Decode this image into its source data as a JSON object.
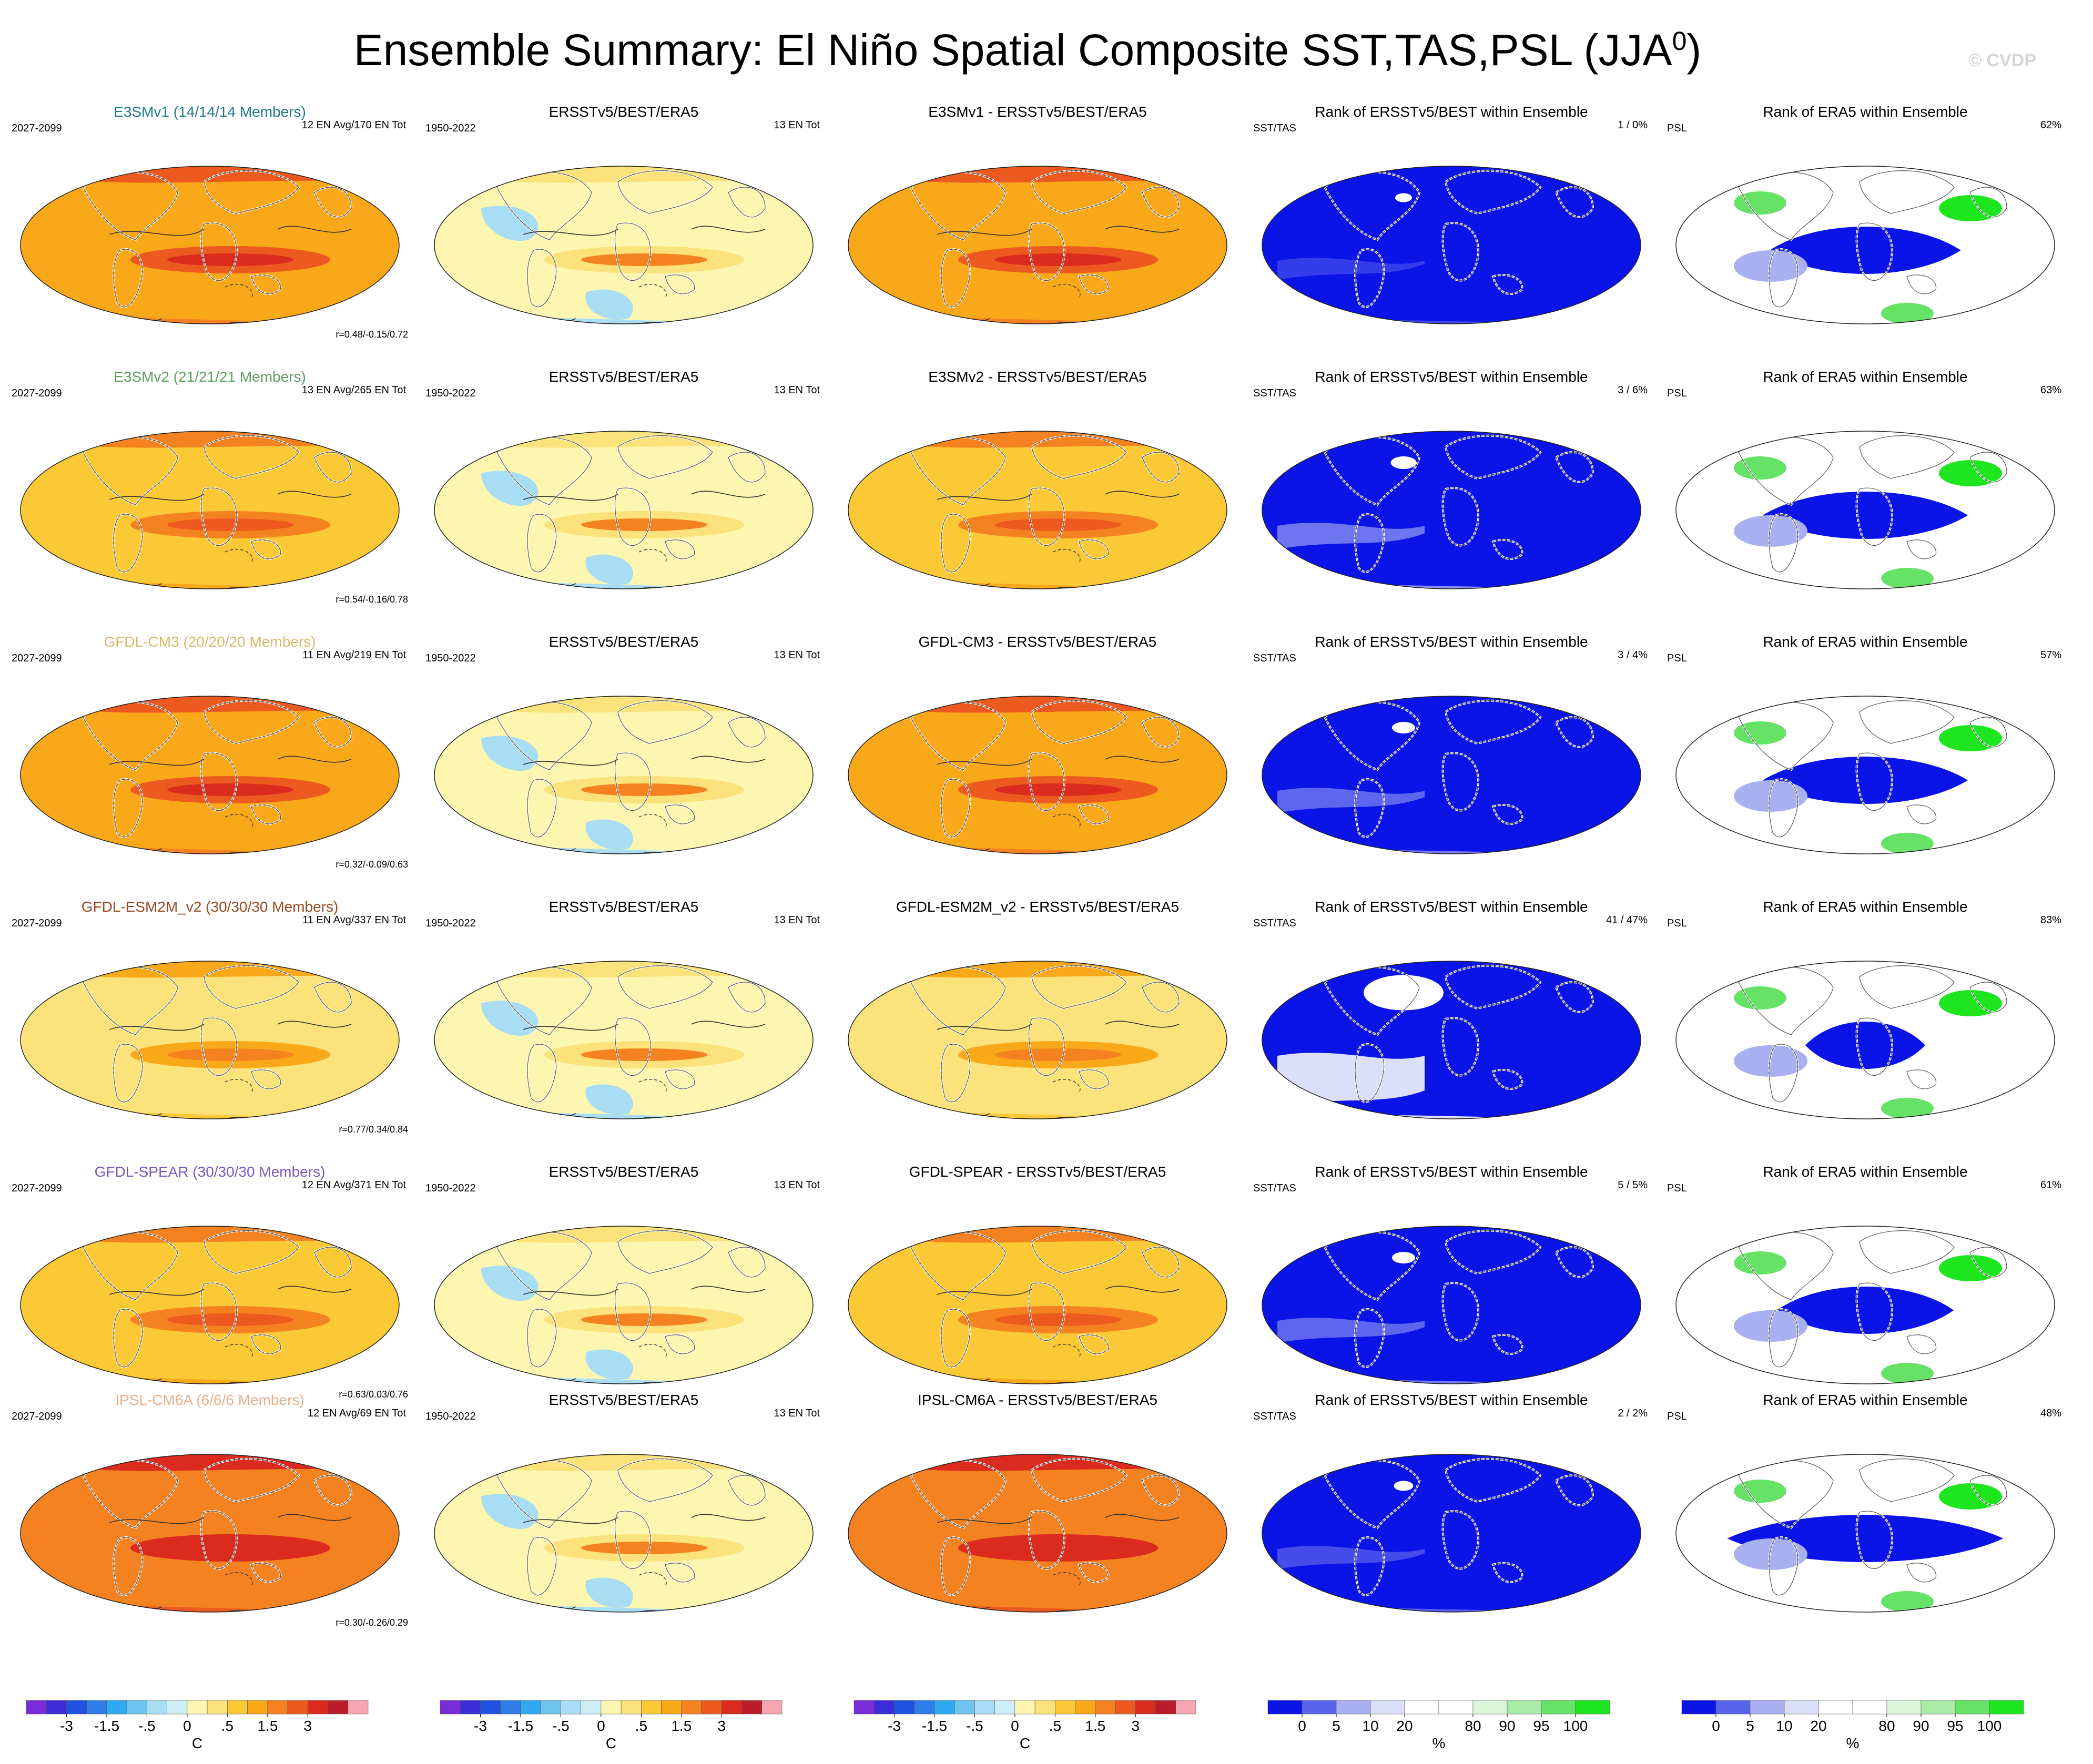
{
  "title": {
    "main": "Ensemble Summary: El Niño Spatial Composite SST,TAS,PSL (JJA",
    "superscript": "0",
    "close": ")"
  },
  "watermark": "© CVDP",
  "rows": [
    {
      "model_title": "E3SMv1 (14/14/14 Members)",
      "model_color": "#1f7a8c",
      "model_period": "2027-2099",
      "model_info": "12 EN Avg/170 EN Tot",
      "model_r": "r=0.48/-0.15/0.72",
      "obs_title": "ERSSTv5/BEST/ERA5",
      "obs_period": "1950-2022",
      "obs_info": "13 EN Tot",
      "diff_title": "E3SMv1 - ERSSTv5/BEST/ERA5",
      "rank_title": "Rank of ERSSTv5/BEST within Ensemble",
      "rank_var": "SST/TAS",
      "rank_value": "1 /  0%",
      "psl_title": "Rank of ERA5 within Ensemble",
      "psl_var": "PSL",
      "psl_value": "62%",
      "model_level": 2,
      "diff_level": 2,
      "rank_cover": 0.95,
      "psl_cover": 0.45
    },
    {
      "model_title": "E3SMv2 (21/21/21 Members)",
      "model_color": "#5d9e5d",
      "model_period": "2027-2099",
      "model_info": "13 EN Avg/265 EN Tot",
      "model_r": "r=0.54/-0.16/0.78",
      "obs_title": "ERSSTv5/BEST/ERA5",
      "obs_period": "1950-2022",
      "obs_info": "13 EN Tot",
      "diff_title": "E3SMv2 - ERSSTv5/BEST/ERA5",
      "rank_title": "Rank of ERSSTv5/BEST within Ensemble",
      "rank_var": "SST/TAS",
      "rank_value": "3 /  6%",
      "psl_title": "Rank of ERA5 within Ensemble",
      "psl_var": "PSL",
      "psl_value": "63%",
      "model_level": 1,
      "diff_level": 1,
      "rank_cover": 0.88,
      "psl_cover": 0.5
    },
    {
      "model_title": "GFDL-CM3 (20/20/20 Members)",
      "model_color": "#d9b86a",
      "model_period": "2027-2099",
      "model_info": "11 EN Avg/219 EN Tot",
      "model_r": "r=0.32/-0.09/0.63",
      "obs_title": "ERSSTv5/BEST/ERA5",
      "obs_period": "1950-2022",
      "obs_info": "13 EN Tot",
      "diff_title": "GFDL-CM3 - ERSSTv5/BEST/ERA5",
      "rank_title": "Rank of ERSSTv5/BEST within Ensemble",
      "rank_var": "SST/TAS",
      "rank_value": "3 /  4%",
      "psl_title": "Rank of ERA5 within Ensemble",
      "psl_var": "PSL",
      "psl_value": "57%",
      "model_level": 2,
      "diff_level": 2,
      "rank_cover": 0.9,
      "psl_cover": 0.5
    },
    {
      "model_title": "GFDL-ESM2M_v2 (30/30/30 Members)",
      "model_color": "#9a4a1f",
      "model_period": "2027-2099",
      "model_info": "11 EN Avg/337 EN Tot",
      "model_r": "r=0.77/0.34/0.84",
      "obs_title": "ERSSTv5/BEST/ERA5",
      "obs_period": "1950-2022",
      "obs_info": "13 EN Tot",
      "diff_title": "GFDL-ESM2M_v2 - ERSSTv5/BEST/ERA5",
      "rank_title": "Rank of ERSSTv5/BEST within Ensemble",
      "rank_var": "SST/TAS",
      "rank_value": "41 /  47%",
      "psl_title": "Rank of ERA5 within Ensemble",
      "psl_var": "PSL",
      "psl_value": "83%",
      "model_level": 0,
      "diff_level": 0,
      "rank_cover": 0.45,
      "psl_cover": 0.2
    },
    {
      "model_title": "GFDL-SPEAR (30/30/30 Members)",
      "model_color": "#7b59c0",
      "model_period": "2027-2099",
      "model_info": "12 EN Avg/371 EN Tot",
      "model_r": "r=0.63/0.03/0.76",
      "obs_title": "ERSSTv5/BEST/ERA5",
      "obs_period": "1950-2022",
      "obs_info": "13 EN Tot",
      "diff_title": "GFDL-SPEAR - ERSSTv5/BEST/ERA5",
      "rank_title": "Rank of ERSSTv5/BEST within Ensemble",
      "rank_var": "SST/TAS",
      "rank_value": "5 /  5%",
      "psl_title": "Rank of ERA5 within Ensemble",
      "psl_var": "PSL",
      "psl_value": "61%",
      "model_level": 1,
      "diff_level": 1,
      "rank_cover": 0.9,
      "psl_cover": 0.4
    },
    {
      "model_title": "IPSL-CM6A (6/6/6 Members)",
      "model_color": "#e8b08a",
      "model_period": "2027-2099",
      "model_info": "12 EN Avg/69 EN Tot",
      "model_r": "r=0.30/-0.26/0.29",
      "obs_title": "ERSSTv5/BEST/ERA5",
      "obs_period": "1950-2022",
      "obs_info": "13 EN Tot",
      "diff_title": "IPSL-CM6A - ERSSTv5/BEST/ERA5",
      "rank_title": "Rank of ERSSTv5/BEST within Ensemble",
      "rank_var": "SST/TAS",
      "rank_value": "2 /  2%",
      "psl_title": "Rank of ERA5 within Ensemble",
      "psl_var": "PSL",
      "psl_value": "48%",
      "model_level": 3,
      "diff_level": 3,
      "rank_cover": 0.93,
      "psl_cover": 0.75
    }
  ],
  "colorbars": {
    "temperature": {
      "colors": [
        "#7a2cd9",
        "#3b2bd9",
        "#1f52e0",
        "#2f7de8",
        "#30a9f0",
        "#6fc4ee",
        "#a9ddf3",
        "#cdeef6",
        "#fdf6b0",
        "#fbe27a",
        "#fbc935",
        "#f9a81a",
        "#f58220",
        "#ec5a1f",
        "#db2a1e",
        "#bb1e2a",
        "#f6a6b0"
      ],
      "tick_labels": [
        "-3",
        "-1.5",
        "-.5",
        "0",
        ".5",
        "1.5",
        "3"
      ],
      "tick_boundaries": [
        2,
        4,
        6,
        8,
        10,
        12,
        14
      ],
      "unit": "C"
    },
    "rank": {
      "colors": [
        "#0a14e6",
        "#5865ea",
        "#a8b0f0",
        "#dcdffa",
        "#ffffff",
        "#ffffff",
        "#daf7da",
        "#a8eca8",
        "#66e266",
        "#1ee61e"
      ],
      "tick_labels": [
        "0",
        "5",
        "10",
        "20",
        "80",
        "90",
        "95",
        "100"
      ],
      "tick_boundaries": [
        1,
        2,
        3,
        4,
        6,
        7,
        8,
        9
      ],
      "unit": "%"
    }
  }
}
